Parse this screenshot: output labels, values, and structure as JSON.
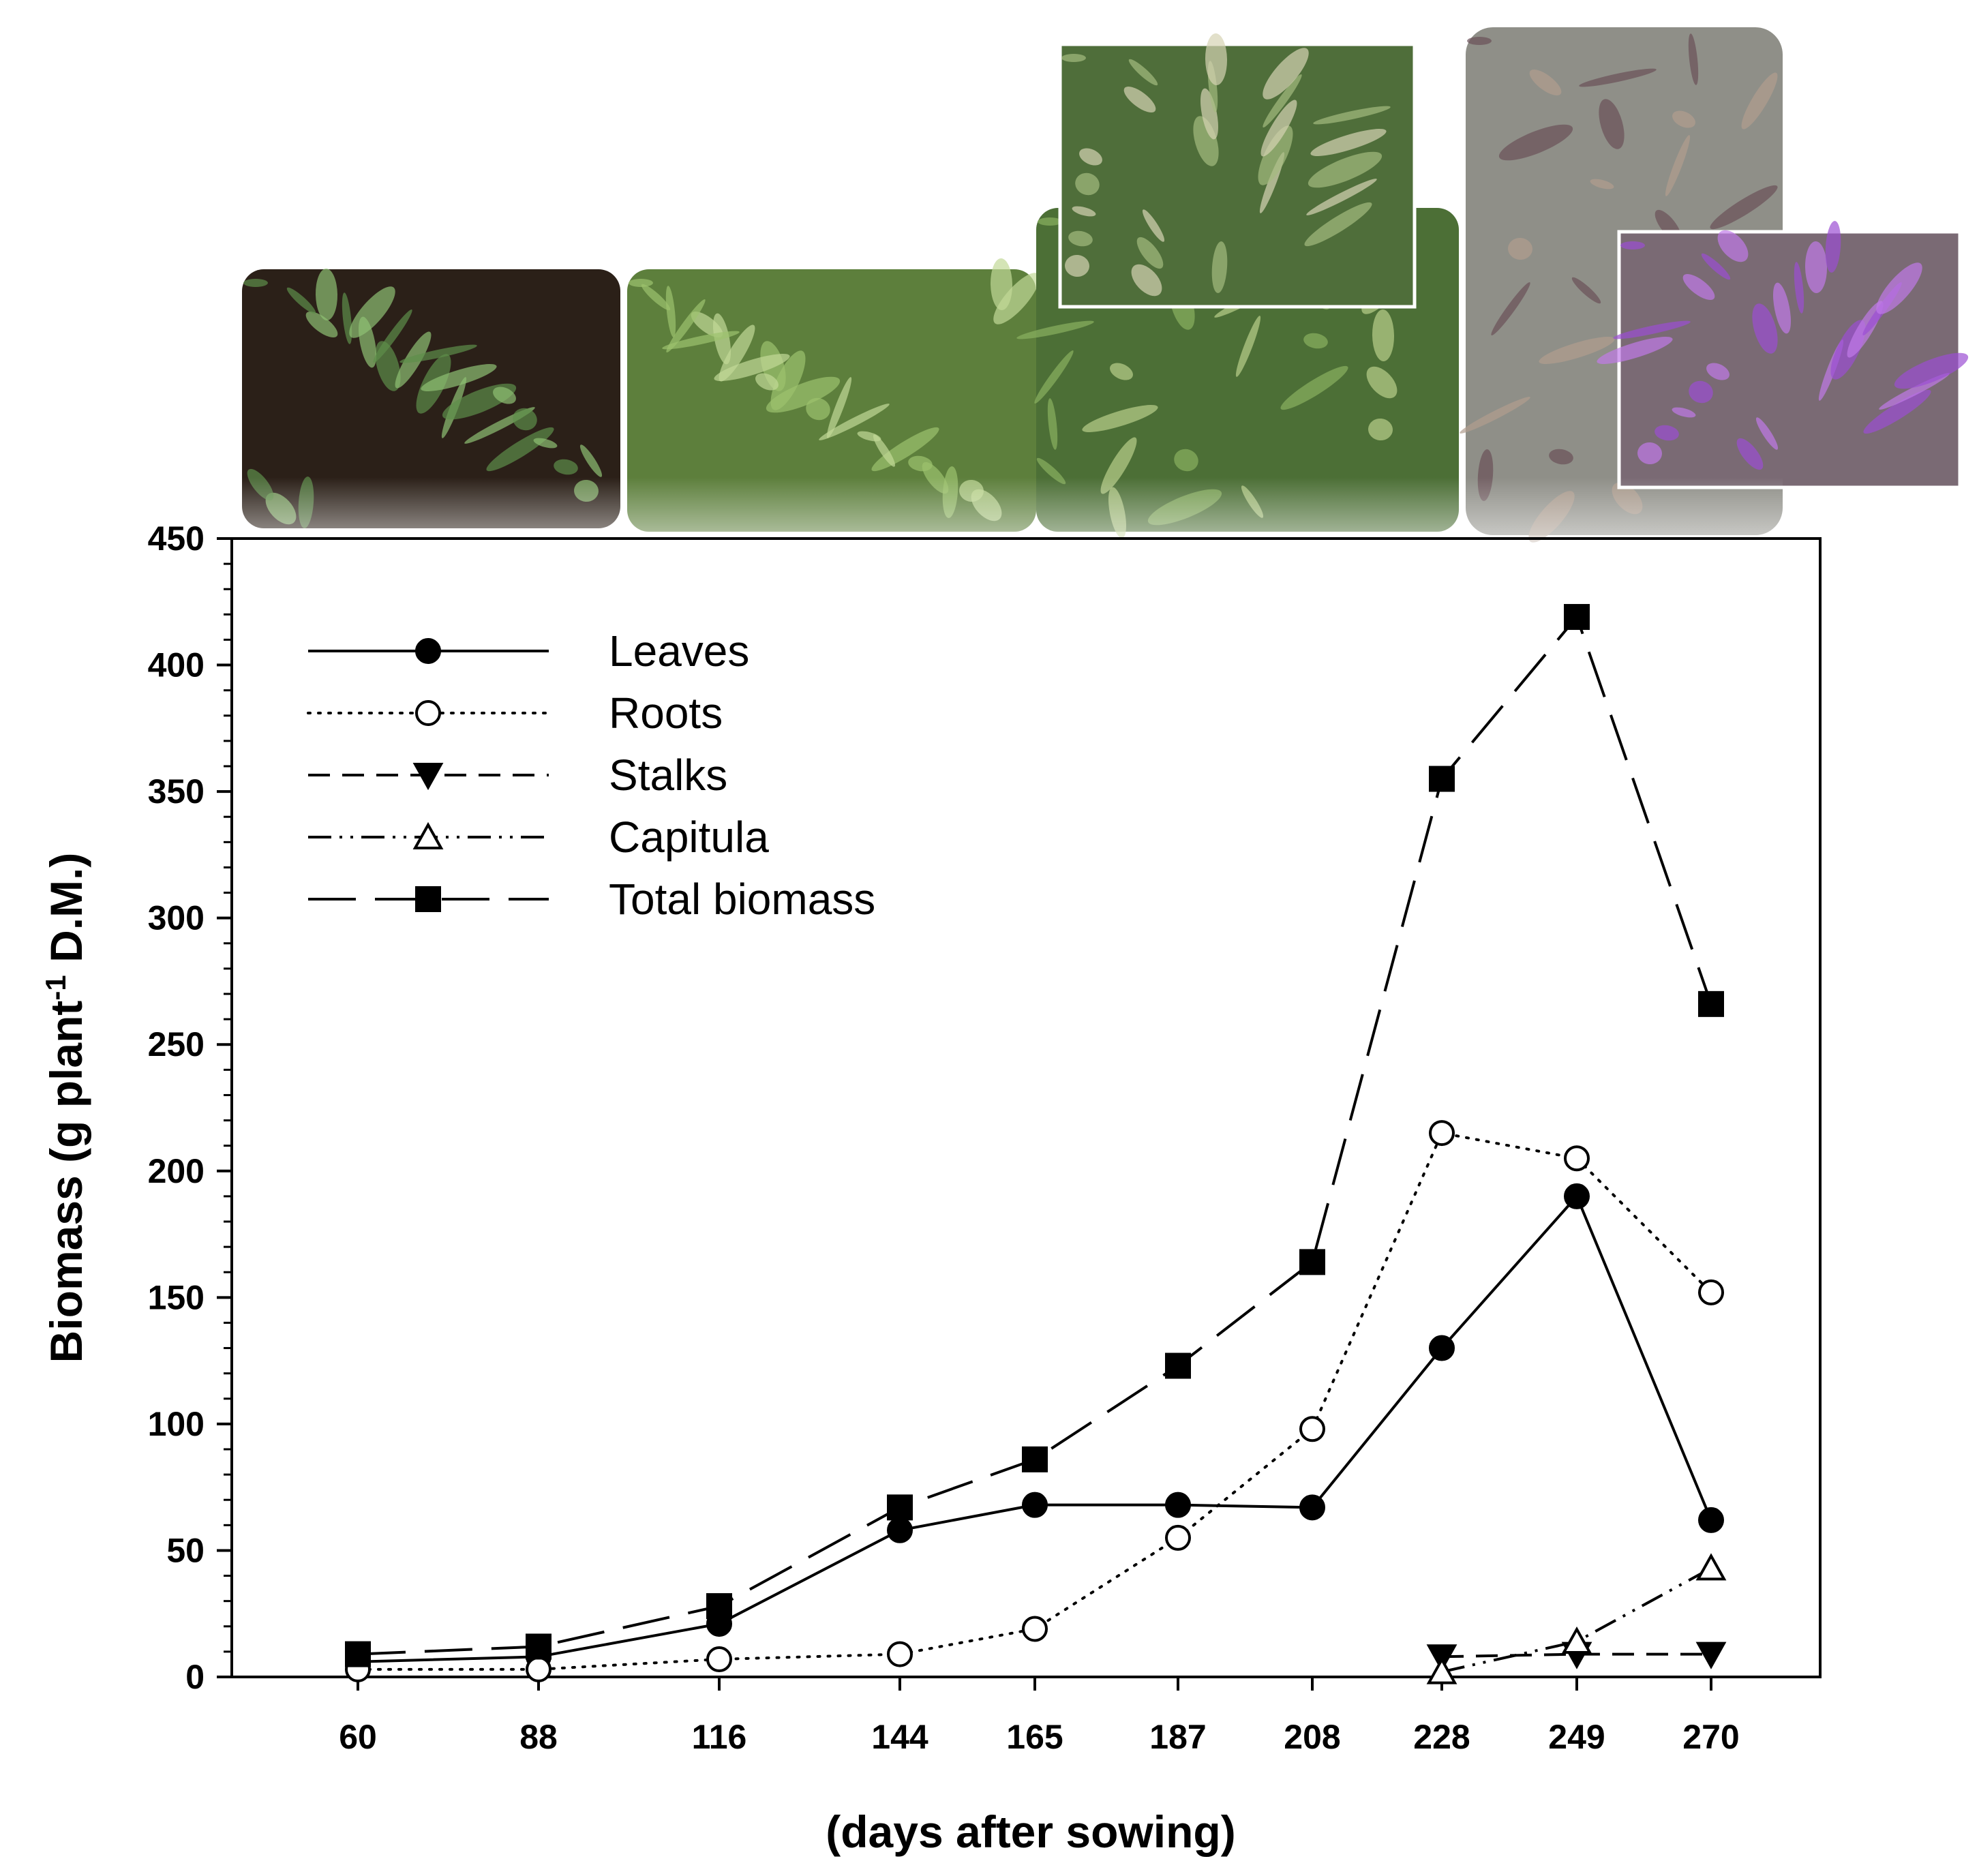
{
  "chart_data": {
    "type": "line",
    "categories": [
      "60",
      "88",
      "116",
      "144",
      "165",
      "187",
      "208",
      "228",
      "249",
      "270"
    ],
    "xlabel": "(days after sowing)",
    "ylabel_main": "Biomass (g plant",
    "ylabel_sup": "-1",
    "ylabel_end": " D.M.)",
    "ylim": [
      0,
      450
    ],
    "yticks": [
      "0",
      "50",
      "100",
      "150",
      "200",
      "250",
      "300",
      "350",
      "400",
      "450"
    ],
    "legend_position": "top-left",
    "grid": false,
    "series": [
      {
        "name": "Leaves",
        "marker": "filled-circle",
        "line": "solid",
        "values": [
          6,
          8,
          21,
          58,
          68,
          68,
          67,
          130,
          190,
          62
        ]
      },
      {
        "name": "Roots",
        "marker": "open-circle",
        "line": "dotted",
        "values": [
          3,
          3,
          7,
          9,
          19,
          55,
          98,
          215,
          205,
          152
        ]
      },
      {
        "name": "Stalks",
        "marker": "filled-triangle-down",
        "line": "dashed",
        "values": [
          null,
          null,
          null,
          null,
          null,
          null,
          null,
          8,
          9,
          9
        ]
      },
      {
        "name": "Capitula",
        "marker": "open-triangle-up",
        "line": "dash-dot-dot",
        "values": [
          null,
          null,
          null,
          null,
          null,
          null,
          null,
          2,
          14,
          43
        ]
      },
      {
        "name": "Total biomass",
        "marker": "filled-square",
        "line": "long-dash",
        "values": [
          9,
          12,
          28,
          67,
          86,
          123,
          164,
          355,
          419,
          266
        ]
      }
    ]
  },
  "photos": [
    {
      "icon": "seedling-photo",
      "colors": [
        "#2b2018",
        "#5e8f4a",
        "#8fc073"
      ]
    },
    {
      "icon": "rosette-photo",
      "colors": [
        "#5d7f3c",
        "#9cc26d",
        "#c2d897"
      ]
    },
    {
      "icon": "stem-elongation-photo",
      "colors": [
        "#4c6f36",
        "#8ab060",
        "#b9cf8a"
      ]
    },
    {
      "icon": "bud-inset-photo",
      "colors": [
        "#4f6e3a",
        "#a4bb7f",
        "#d6d3b3"
      ]
    },
    {
      "icon": "flowering-plant-photo",
      "colors": [
        "#8f8f88",
        "#6a5058",
        "#b09c8e"
      ]
    },
    {
      "icon": "purple-flower-inset-photo",
      "colors": [
        "#7a6a74",
        "#9b4fd3",
        "#c07be8"
      ]
    }
  ]
}
